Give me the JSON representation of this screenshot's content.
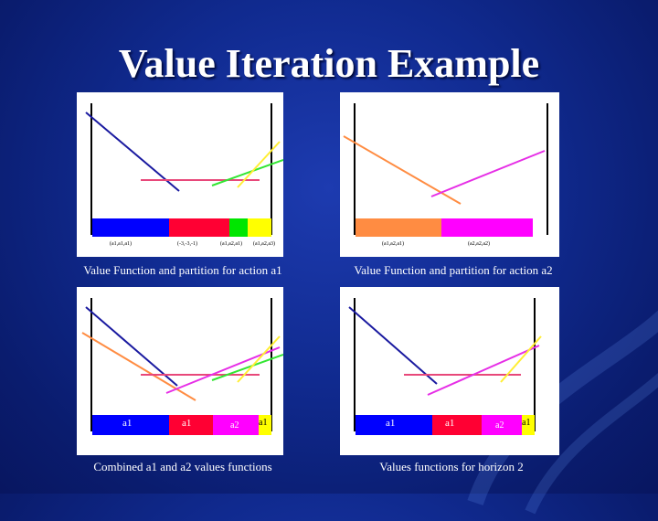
{
  "slide": {
    "title": "Value Iteration Example"
  },
  "panels": [
    {
      "id": "p1",
      "caption": "Value Function and partition for action a1",
      "axis_labels": [
        "(a1,a1,a1)",
        "(-3,-3,-1)",
        "(a1,a2,a1)",
        "(a1,a2,a3)"
      ]
    },
    {
      "id": "p2",
      "caption": "Value Function and partition for action a2",
      "axis_labels": [
        "(a1,a2,a1)",
        "(a2,a2,a2)"
      ]
    },
    {
      "id": "p3",
      "caption": "Combined a1 and a2 values functions",
      "regions": [
        "a1",
        "a1",
        "a2",
        "a1"
      ]
    },
    {
      "id": "p4",
      "caption": "Values functions for horizon 2",
      "regions": [
        "a1",
        "a1",
        "a2",
        "a1"
      ]
    }
  ],
  "colors": {
    "blue": "#0000ff",
    "red": "#ff0033",
    "green": "#00e600",
    "yellow": "#ffff00",
    "orange": "#ff8c42",
    "magenta": "#ff00ff",
    "pink": "#e8487a",
    "navy": "#1a1aa0"
  }
}
